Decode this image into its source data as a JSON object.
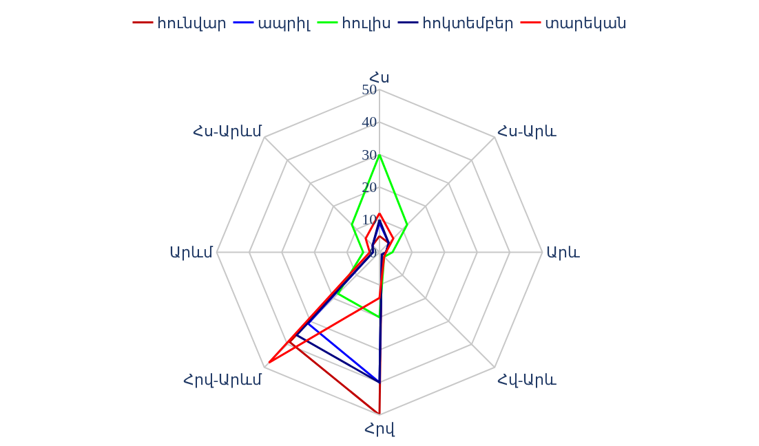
{
  "chart_data": {
    "type": "radar",
    "categories": [
      "Հս",
      "Հս-Արև",
      "Արև",
      "Հվ-Արև",
      "Հրվ",
      "Հրվ-Արևմ",
      "Արևմ",
      "Հս-Արևմ"
    ],
    "ylim": [
      0,
      50
    ],
    "yticks": [
      0,
      10,
      20,
      30,
      40,
      50
    ],
    "grid": true,
    "legend": "top",
    "marker": "none",
    "line_style": "solid",
    "series": [
      {
        "name": "հունվար",
        "color": "#c00000",
        "values": [
          5,
          4,
          2,
          1,
          50,
          39,
          2,
          3
        ]
      },
      {
        "name": "ապրիլ",
        "color": "#0000ff",
        "values": [
          9,
          4,
          2,
          1,
          40,
          31,
          2,
          3
        ]
      },
      {
        "name": "հուլիս",
        "color": "#00ff00",
        "values": [
          30,
          12,
          4,
          2,
          20,
          18,
          5,
          12
        ]
      },
      {
        "name": "հոկտեմբեր",
        "color": "#000080",
        "values": [
          10,
          4,
          2,
          1,
          40,
          36,
          2,
          3
        ]
      },
      {
        "name": "տարեկան",
        "color": "#ff0000",
        "values": [
          12,
          6,
          2,
          2,
          14,
          48,
          3,
          6
        ]
      }
    ]
  }
}
